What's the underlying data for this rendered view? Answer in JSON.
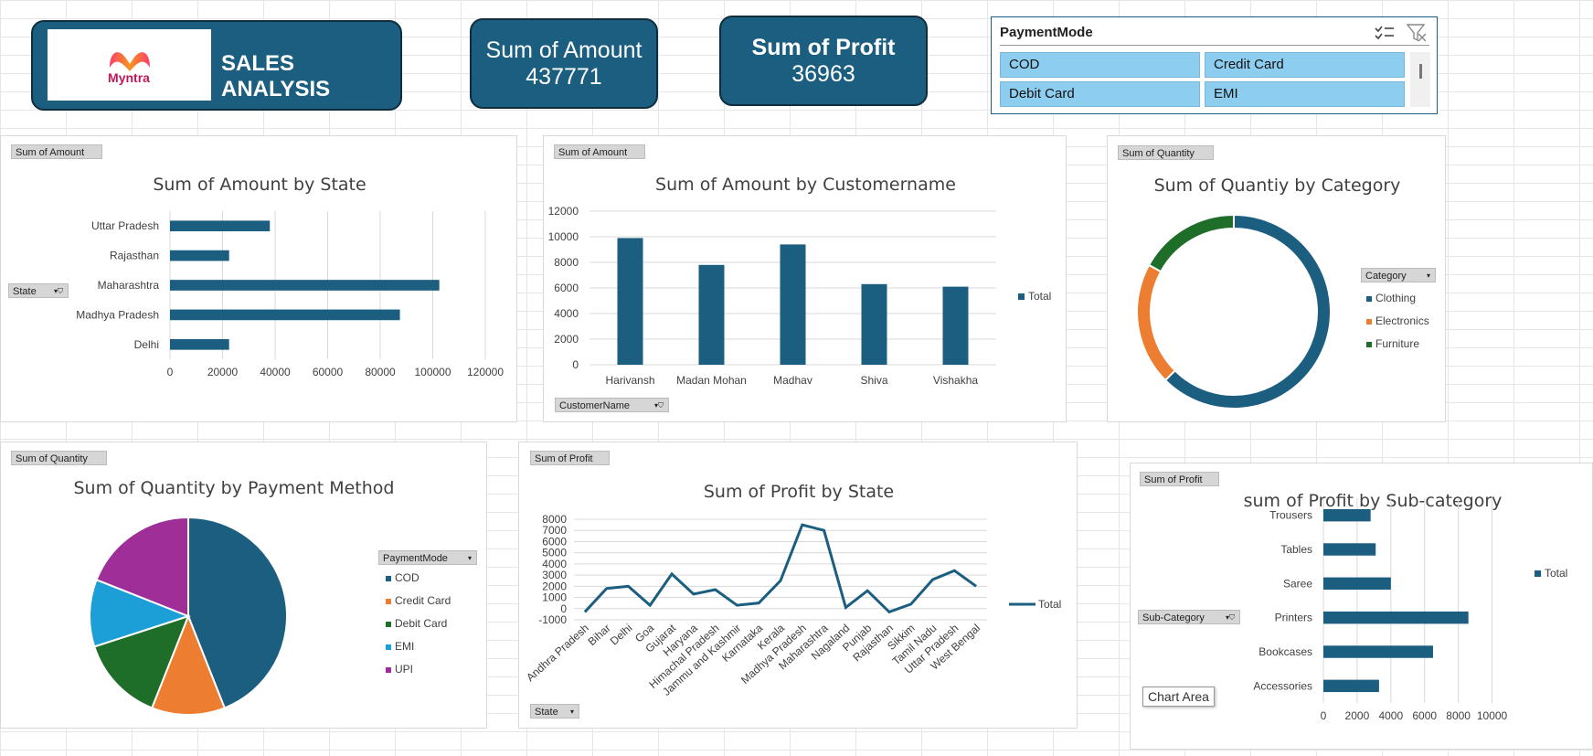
{
  "header": {
    "title": "SALES ANALYSIS",
    "logo_text": "Myntra"
  },
  "kpis": {
    "amount": {
      "label": "Sum of Amount",
      "value": "437771"
    },
    "profit": {
      "label": "Sum of Profit",
      "value": "36963"
    }
  },
  "slicer": {
    "title": "PaymentMode",
    "items": [
      "COD",
      "Credit Card",
      "Debit Card",
      "EMI"
    ],
    "icons": [
      "multi-select-icon",
      "clear-filter-icon"
    ]
  },
  "colors": {
    "primary": "#1b5e80",
    "orange": "#ed7d31",
    "green": "#1e6e2a",
    "cyan": "#1b9fd6",
    "purple": "#a02e98"
  },
  "panels": {
    "amount_state": {
      "pill": "Sum of Amount",
      "filter": "State"
    },
    "amount_customer": {
      "pill": "Sum of Amount",
      "filter": "CustomerName"
    },
    "qty_category": {
      "pill": "Sum of Quantity",
      "filter": "Category"
    },
    "qty_payment": {
      "pill": "Sum of Quantity",
      "filter": "PaymentMode"
    },
    "profit_state": {
      "pill": "Sum of Profit",
      "filter": "State"
    },
    "profit_subcat": {
      "pill": "Sum of Profit",
      "filter": "Sub-Category"
    }
  },
  "tooltip": "Chart Area",
  "chart_data": [
    {
      "id": "amount_state",
      "type": "bar",
      "orientation": "horizontal",
      "title": "Sum of Amount by State",
      "categories": [
        "Uttar Pradesh",
        "Rajasthan",
        "Maharashtra",
        "Madhya Pradesh",
        "Delhi"
      ],
      "values": [
        38000,
        22500,
        102500,
        87500,
        22500
      ],
      "xlim": [
        0,
        120000
      ],
      "xticks": [
        "0",
        "20000",
        "40000",
        "60000",
        "80000",
        "100000",
        "120000"
      ]
    },
    {
      "id": "amount_customer",
      "type": "bar",
      "title": "Sum of Amount by Customername",
      "categories": [
        "Harivansh",
        "Madan Mohan",
        "Madhav",
        "Shiva",
        "Vishakha"
      ],
      "values": [
        9900,
        7800,
        9400,
        6300,
        6100
      ],
      "ylim": [
        0,
        12000
      ],
      "yticks": [
        "0",
        "2000",
        "4000",
        "6000",
        "8000",
        "10000",
        "12000"
      ],
      "legend": [
        "Total"
      ]
    },
    {
      "id": "qty_category",
      "type": "pie",
      "donut": true,
      "title": "Sum of Quantiy by Category",
      "categories": [
        "Clothing",
        "Electronics",
        "Furniture"
      ],
      "values": [
        62.5,
        20.5,
        17
      ]
    },
    {
      "id": "qty_payment",
      "type": "pie",
      "title": "Sum of Quantity by Payment Method",
      "categories": [
        "COD",
        "Credit Card",
        "Debit Card",
        "EMI",
        "UPI"
      ],
      "values": [
        44,
        12,
        14,
        11,
        19
      ]
    },
    {
      "id": "profit_state",
      "type": "line",
      "title": "Sum of Profit by State",
      "categories": [
        "Andhra Pradesh",
        "Bihar",
        "Delhi",
        "Goa",
        "Gujarat",
        "Haryana",
        "Himachal Pradesh",
        "Jammu and Kashmir",
        "Karnataka",
        "Kerala",
        "Madhya Pradesh",
        "Maharashtra",
        "Nagaland",
        "Punjab",
        "Rajasthan",
        "Sikkim",
        "Tamil Nadu",
        "Uttar Pradesh",
        "West Bengal"
      ],
      "values": [
        -300,
        1800,
        2000,
        300,
        3100,
        1300,
        1700,
        300,
        500,
        2500,
        7500,
        7000,
        100,
        1600,
        -300,
        400,
        2600,
        3400,
        2000
      ],
      "ylim": [
        -1000,
        8000
      ],
      "yticks": [
        "-1000",
        "0",
        "1000",
        "2000",
        "3000",
        "4000",
        "5000",
        "6000",
        "7000",
        "8000"
      ],
      "legend": [
        "Total"
      ]
    },
    {
      "id": "profit_subcat",
      "type": "bar",
      "orientation": "horizontal",
      "title": "sum of Profit by Sub-category",
      "categories": [
        "Trousers",
        "Tables",
        "Saree",
        "Printers",
        "Bookcases",
        "Accessories"
      ],
      "values": [
        2800,
        3100,
        4000,
        8600,
        6500,
        3300
      ],
      "xlim": [
        0,
        11000
      ],
      "xticks": [
        "0",
        "2000",
        "4000",
        "6000",
        "8000",
        "10000"
      ],
      "legend": [
        "Total"
      ]
    }
  ]
}
